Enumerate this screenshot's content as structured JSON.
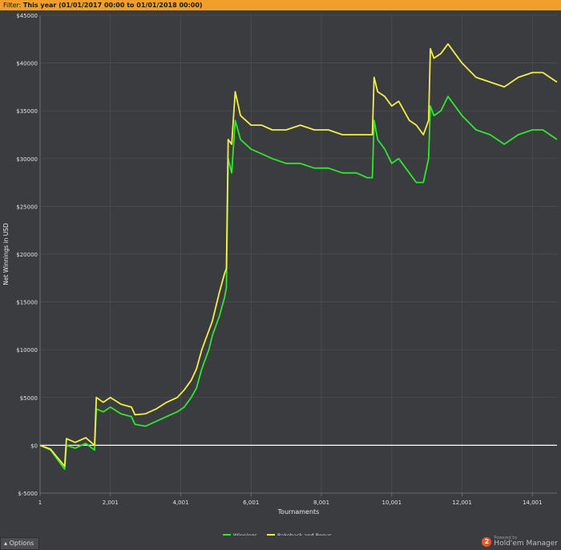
{
  "filter": {
    "prefix": "Filter:",
    "text": "This year (01/01/2017 00:00 to 01/01/2018 00:00)"
  },
  "options_label": "Options",
  "branding": {
    "powered": "Powered by",
    "name": "Hold'em Manager",
    "logo_text": "2"
  },
  "colors": {
    "background": "#3a3c3f",
    "grid": "#4e5154",
    "winnings": "#2ee82e",
    "rakeback": "#f4ee4a",
    "zero_line": "#ffffff",
    "filter_bar": "#f0a02a"
  },
  "chart_data": {
    "type": "line",
    "xlabel": "Tournaments",
    "ylabel": "Net Winnings in USD",
    "xlim": [
      1,
      14700
    ],
    "ylim": [
      -5000,
      45000
    ],
    "xticks": [
      1,
      2001,
      4001,
      6001,
      8001,
      10001,
      12001,
      14001
    ],
    "xtick_labels": [
      "1",
      "2,001",
      "4,001",
      "6,001",
      "8,001",
      "10,001",
      "12,001",
      "14,001"
    ],
    "yticks": [
      -5000,
      0,
      5000,
      10000,
      15000,
      20000,
      25000,
      30000,
      35000,
      40000,
      45000
    ],
    "ytick_labels": [
      "$-5000",
      "$0",
      "$5000",
      "$10000",
      "$15000",
      "$20000",
      "$25000",
      "$30000",
      "$35000",
      "$40000",
      "$45000"
    ],
    "grid": true,
    "legend_position": "bottom-center",
    "series": [
      {
        "name": "Winnings",
        "color": "#2ee82e",
        "x": [
          1,
          300,
          500,
          700,
          750,
          1000,
          1300,
          1550,
          1600,
          1800,
          2000,
          2300,
          2600,
          2700,
          3000,
          3300,
          3600,
          3900,
          4100,
          4300,
          4450,
          4600,
          4800,
          4900,
          5100,
          5250,
          5300,
          5350,
          5450,
          5550,
          5700,
          6000,
          6300,
          6600,
          7000,
          7400,
          7800,
          8200,
          8600,
          9000,
          9300,
          9450,
          9500,
          9600,
          9800,
          10000,
          10200,
          10500,
          10700,
          10900,
          11050,
          11100,
          11200,
          11400,
          11600,
          11800,
          12000,
          12400,
          12800,
          13200,
          13600,
          14000,
          14300,
          14500,
          14700
        ],
        "y": [
          0,
          -500,
          -1500,
          -2500,
          0,
          -300,
          200,
          -500,
          3800,
          3500,
          4000,
          3300,
          3000,
          2200,
          2000,
          2500,
          3000,
          3500,
          4000,
          5000,
          6000,
          8000,
          10000,
          11500,
          13500,
          15500,
          16500,
          30000,
          28500,
          34000,
          32000,
          31000,
          30500,
          30000,
          29500,
          29500,
          29000,
          29000,
          28500,
          28500,
          28000,
          28000,
          34000,
          32000,
          31000,
          29500,
          30000,
          28500,
          27500,
          27500,
          30000,
          35500,
          34500,
          35000,
          36500,
          35500,
          34500,
          33000,
          32500,
          31500,
          32500,
          33000,
          33000,
          32500,
          32000
        ]
      },
      {
        "name": "Rakeback and Bonus",
        "color": "#f4ee4a",
        "x": [
          1,
          300,
          500,
          700,
          750,
          1000,
          1300,
          1550,
          1600,
          1800,
          2000,
          2300,
          2600,
          2700,
          3000,
          3300,
          3600,
          3900,
          4100,
          4300,
          4450,
          4600,
          4800,
          4900,
          5100,
          5250,
          5300,
          5350,
          5450,
          5550,
          5700,
          6000,
          6300,
          6600,
          7000,
          7400,
          7800,
          8200,
          8600,
          9000,
          9300,
          9450,
          9500,
          9600,
          9800,
          10000,
          10200,
          10500,
          10700,
          10900,
          11050,
          11100,
          11200,
          11400,
          11600,
          11800,
          12000,
          12400,
          12800,
          13200,
          13600,
          14000,
          14300,
          14500,
          14700
        ],
        "y": [
          0,
          -400,
          -1300,
          -2200,
          700,
          300,
          800,
          0,
          5000,
          4500,
          5000,
          4300,
          4000,
          3200,
          3300,
          3800,
          4500,
          5000,
          5800,
          6800,
          8000,
          10000,
          12000,
          13000,
          16000,
          18000,
          18500,
          32000,
          31500,
          37000,
          34500,
          33500,
          33500,
          33000,
          33000,
          33500,
          33000,
          33000,
          32500,
          32500,
          32500,
          32500,
          38500,
          37000,
          36500,
          35500,
          36000,
          34000,
          33500,
          32500,
          34000,
          41500,
          40500,
          41000,
          42000,
          41000,
          40000,
          38500,
          38000,
          37500,
          38500,
          39000,
          39000,
          38500,
          38000
        ]
      }
    ]
  }
}
